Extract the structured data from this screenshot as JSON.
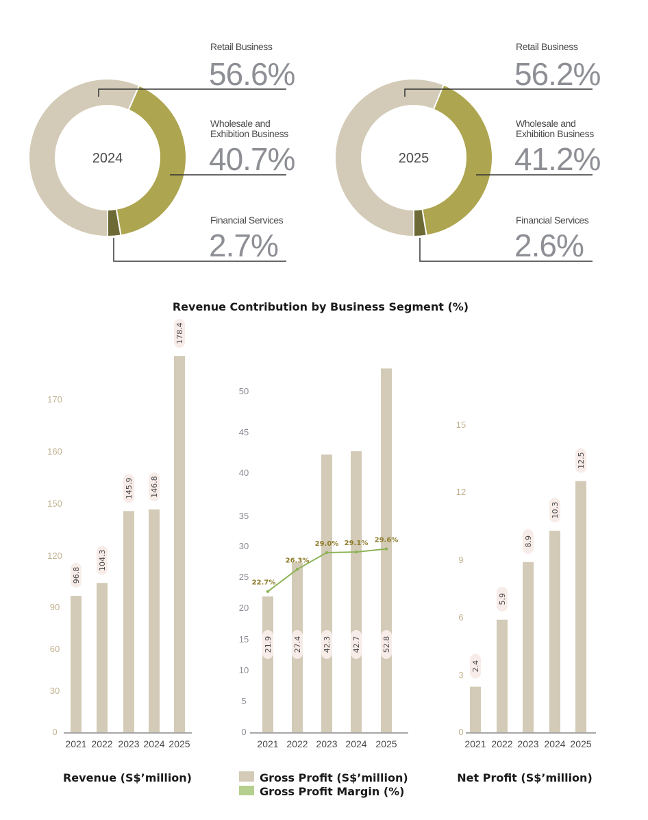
{
  "colors": {
    "retail": "#d3cbb7",
    "wholesale": "#ada54f",
    "financial": "#6e6a36",
    "bar": "#d3cbb7",
    "line": "#8db356",
    "leader": "#333333",
    "pill": "#f8ece8"
  },
  "title": "Revenue Contribution by Business Segment (%)",
  "chart_data": [
    {
      "type": "pie",
      "title": "2024",
      "categories": [
        "Retail Business",
        "Wholesale and Exhibition Business",
        "Financial Services"
      ],
      "values": [
        56.6,
        40.7,
        2.7
      ],
      "labels": [
        {
          "name_lines": [
            "Retail Business"
          ],
          "pct": "56.6%"
        },
        {
          "name_lines": [
            "Wholesale and",
            "Exhibition Business"
          ],
          "pct": "40.7%"
        },
        {
          "name_lines": [
            "Financial Services"
          ],
          "pct": "2.7%"
        }
      ]
    },
    {
      "type": "pie",
      "title": "2025",
      "categories": [
        "Retail Business",
        "Wholesale and Exhibition Business",
        "Financial Services"
      ],
      "values": [
        56.2,
        41.2,
        2.6
      ],
      "labels": [
        {
          "name_lines": [
            "Retail Business"
          ],
          "pct": "56.2%"
        },
        {
          "name_lines": [
            "Wholesale and",
            "Exhibition Business"
          ],
          "pct": "41.2%"
        },
        {
          "name_lines": [
            "Financial Services"
          ],
          "pct": "2.6%"
        }
      ]
    },
    {
      "type": "bar",
      "title": "Revenue (S$’million)",
      "categories": [
        "2021",
        "2022",
        "2023",
        "2024",
        "2025"
      ],
      "values": [
        96.8,
        104.3,
        145.9,
        146.8,
        178.4
      ],
      "value_labels": [
        "96.8",
        "104.3",
        "145.9",
        "146.8",
        "178.4"
      ],
      "yticks": [
        0,
        30,
        60,
        90,
        120,
        150,
        160,
        170
      ],
      "ylim": [
        0,
        170
      ],
      "axis_note": "non-linear (broken) y-axis"
    },
    {
      "type": "bar",
      "title": "Gross Profit (S$’million)",
      "categories": [
        "2021",
        "2022",
        "2023",
        "2024",
        "2025"
      ],
      "series": [
        {
          "name": "Gross Profit (S$’million)",
          "type": "bar",
          "values": [
            21.9,
            27.4,
            42.3,
            42.7,
            52.8
          ],
          "value_labels": [
            "21.9",
            "27.4",
            "42.3",
            "42.7",
            "52.8"
          ]
        },
        {
          "name": "Gross Profit Margin (%)",
          "type": "line",
          "values": [
            22.7,
            26.3,
            29.0,
            29.1,
            29.6
          ],
          "value_labels": [
            "22.7%",
            "26.3%",
            "29.0%",
            "29.1%",
            "29.6%"
          ]
        }
      ],
      "yticks": [
        0,
        5,
        10,
        15,
        20,
        25,
        30,
        35,
        40,
        45,
        50
      ],
      "ylim": [
        0,
        50
      ],
      "legend": [
        {
          "label": "Gross Profit (S$’million)",
          "swatch": "bar"
        },
        {
          "label": "Gross Profit Margin (%)",
          "swatch": "line"
        }
      ],
      "legend_position": "bottom"
    },
    {
      "type": "bar",
      "title": "Net Profit (S$’million)",
      "categories": [
        "2021",
        "2022",
        "2023",
        "2024",
        "2025"
      ],
      "values": [
        2.4,
        5.9,
        8.9,
        10.3,
        12.5
      ],
      "value_labels": [
        "2.4",
        "5.9",
        "8.9",
        "10.3",
        "12.5"
      ],
      "yticks": [
        0,
        3,
        6,
        9,
        12,
        15
      ],
      "ylim": [
        0,
        15
      ]
    }
  ]
}
